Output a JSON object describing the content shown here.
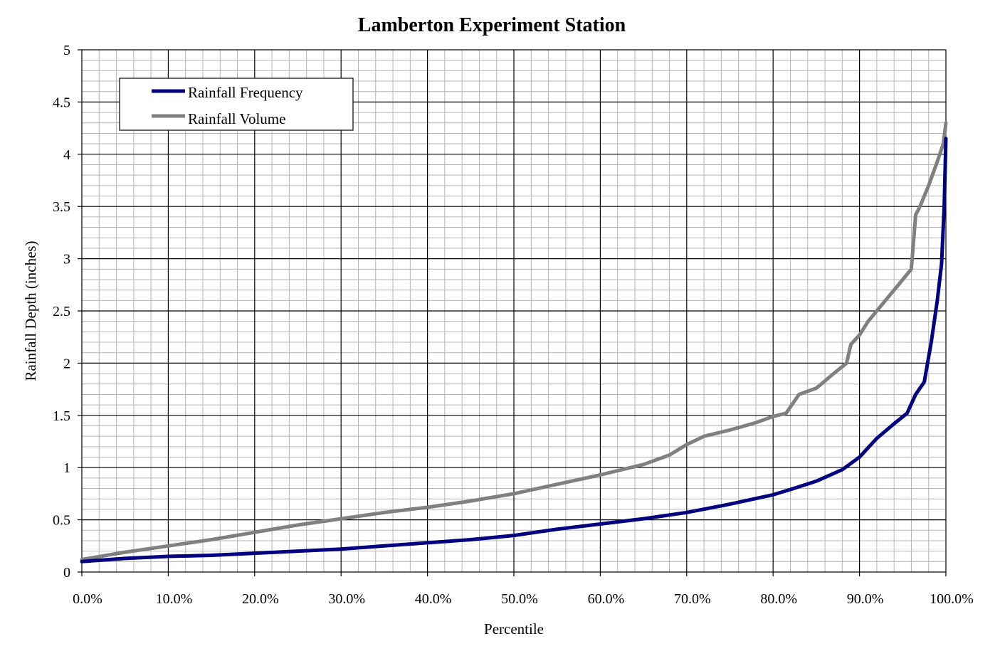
{
  "chart_data": {
    "type": "line",
    "title": "Lamberton Experiment Station",
    "xlabel": "Percentile",
    "ylabel": "Rainfall Depth (inches)",
    "xlim": [
      0,
      100
    ],
    "ylim": [
      0,
      5
    ],
    "grid": true,
    "legend_position": "top-left",
    "x_ticks": [
      "0.0%",
      "10.0%",
      "20.0%",
      "30.0%",
      "40.0%",
      "50.0%",
      "60.0%",
      "70.0%",
      "80.0%",
      "90.0%",
      "100.0%"
    ],
    "y_ticks": [
      "0",
      "0.5",
      "1",
      "1.5",
      "2",
      "2.5",
      "3",
      "3.5",
      "4",
      "4.5",
      "5"
    ],
    "series": [
      {
        "name": "Rainfall Frequency",
        "color": "#000080",
        "x": [
          0,
          5,
          10,
          15,
          20,
          25,
          30,
          35,
          40,
          45,
          50,
          55,
          60,
          65,
          70,
          75,
          80,
          82,
          85,
          88,
          90,
          92,
          94,
          95.5,
          96.5,
          97.5,
          98.3,
          99,
          99.5,
          99.8,
          100
        ],
        "y": [
          0.1,
          0.13,
          0.15,
          0.16,
          0.18,
          0.2,
          0.22,
          0.25,
          0.28,
          0.31,
          0.35,
          0.41,
          0.46,
          0.51,
          0.57,
          0.65,
          0.74,
          0.79,
          0.87,
          0.98,
          1.1,
          1.28,
          1.42,
          1.52,
          1.7,
          1.82,
          2.2,
          2.6,
          2.95,
          3.5,
          4.15
        ]
      },
      {
        "name": "Rainfall Volume",
        "color": "#808080",
        "x": [
          0,
          5,
          10,
          15,
          20,
          25,
          30,
          35,
          40,
          45,
          50,
          55,
          60,
          65,
          68,
          70,
          72,
          75,
          78,
          80,
          81.5,
          83,
          85,
          87,
          88.5,
          89,
          90,
          91,
          92,
          93,
          94,
          95,
          96,
          96.5,
          97,
          98,
          99,
          99.7,
          100
        ],
        "y": [
          0.12,
          0.19,
          0.25,
          0.31,
          0.38,
          0.45,
          0.51,
          0.57,
          0.62,
          0.68,
          0.75,
          0.84,
          0.93,
          1.03,
          1.12,
          1.22,
          1.3,
          1.36,
          1.43,
          1.49,
          1.52,
          1.7,
          1.76,
          1.9,
          2.0,
          2.18,
          2.27,
          2.4,
          2.5,
          2.6,
          2.7,
          2.8,
          2.9,
          3.42,
          3.5,
          3.7,
          3.93,
          4.1,
          4.3
        ]
      }
    ]
  }
}
